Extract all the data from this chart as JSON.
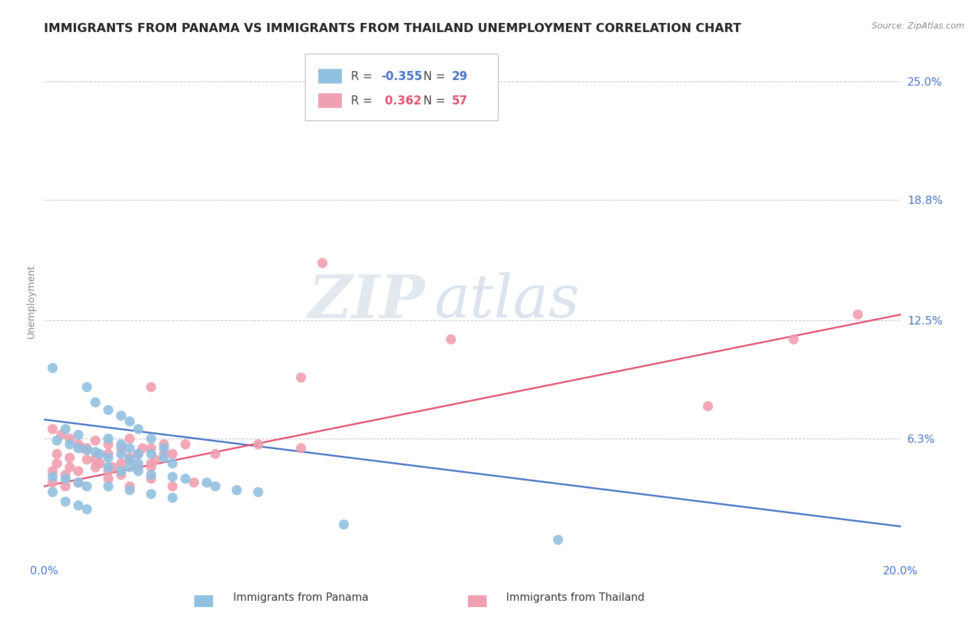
{
  "title": "IMMIGRANTS FROM PANAMA VS IMMIGRANTS FROM THAILAND UNEMPLOYMENT CORRELATION CHART",
  "source": "Source: ZipAtlas.com",
  "ylabel": "Unemployment",
  "xlim": [
    0.0,
    0.2
  ],
  "ylim": [
    0.0,
    0.27
  ],
  "ytick_values": [
    0.063,
    0.125,
    0.188,
    0.25
  ],
  "ytick_labels": [
    "6.3%",
    "12.5%",
    "18.8%",
    "25.0%"
  ],
  "hgrid_values": [
    0.063,
    0.125,
    0.188,
    0.25
  ],
  "watermark_zip": "ZIP",
  "watermark_atlas": "atlas",
  "panama_color": "#92c0e0",
  "thailand_color": "#f0a0b0",
  "panama_line_color": "#4472c4",
  "thailand_line_color": "#e05070",
  "panama_scatter": [
    [
      0.002,
      0.1
    ],
    [
      0.01,
      0.09
    ],
    [
      0.012,
      0.082
    ],
    [
      0.015,
      0.078
    ],
    [
      0.018,
      0.075
    ],
    [
      0.02,
      0.072
    ],
    [
      0.022,
      0.068
    ],
    [
      0.005,
      0.068
    ],
    [
      0.008,
      0.065
    ],
    [
      0.015,
      0.063
    ],
    [
      0.018,
      0.06
    ],
    [
      0.02,
      0.058
    ],
    [
      0.022,
      0.055
    ],
    [
      0.025,
      0.063
    ],
    [
      0.028,
      0.058
    ],
    [
      0.01,
      0.057
    ],
    [
      0.013,
      0.055
    ],
    [
      0.015,
      0.053
    ],
    [
      0.018,
      0.055
    ],
    [
      0.02,
      0.052
    ],
    [
      0.022,
      0.05
    ],
    [
      0.025,
      0.055
    ],
    [
      0.028,
      0.053
    ],
    [
      0.03,
      0.05
    ],
    [
      0.003,
      0.062
    ],
    [
      0.006,
      0.06
    ],
    [
      0.008,
      0.058
    ],
    [
      0.012,
      0.056
    ],
    [
      0.015,
      0.048
    ],
    [
      0.018,
      0.046
    ],
    [
      0.02,
      0.048
    ],
    [
      0.022,
      0.046
    ],
    [
      0.025,
      0.044
    ],
    [
      0.03,
      0.043
    ],
    [
      0.033,
      0.042
    ],
    [
      0.038,
      0.04
    ],
    [
      0.04,
      0.038
    ],
    [
      0.045,
      0.036
    ],
    [
      0.05,
      0.035
    ],
    [
      0.002,
      0.043
    ],
    [
      0.005,
      0.042
    ],
    [
      0.008,
      0.04
    ],
    [
      0.01,
      0.038
    ],
    [
      0.015,
      0.038
    ],
    [
      0.02,
      0.036
    ],
    [
      0.025,
      0.034
    ],
    [
      0.03,
      0.032
    ],
    [
      0.002,
      0.035
    ],
    [
      0.005,
      0.03
    ],
    [
      0.008,
      0.028
    ],
    [
      0.01,
      0.026
    ],
    [
      0.07,
      0.018
    ],
    [
      0.12,
      0.01
    ]
  ],
  "thailand_scatter": [
    [
      0.002,
      0.068
    ],
    [
      0.004,
      0.065
    ],
    [
      0.006,
      0.063
    ],
    [
      0.008,
      0.06
    ],
    [
      0.01,
      0.058
    ],
    [
      0.012,
      0.062
    ],
    [
      0.015,
      0.06
    ],
    [
      0.018,
      0.058
    ],
    [
      0.02,
      0.063
    ],
    [
      0.022,
      0.055
    ],
    [
      0.025,
      0.058
    ],
    [
      0.028,
      0.06
    ],
    [
      0.003,
      0.055
    ],
    [
      0.006,
      0.053
    ],
    [
      0.009,
      0.058
    ],
    [
      0.012,
      0.052
    ],
    [
      0.015,
      0.055
    ],
    [
      0.018,
      0.05
    ],
    [
      0.02,
      0.053
    ],
    [
      0.023,
      0.058
    ],
    [
      0.026,
      0.052
    ],
    [
      0.003,
      0.05
    ],
    [
      0.006,
      0.048
    ],
    [
      0.01,
      0.052
    ],
    [
      0.013,
      0.05
    ],
    [
      0.016,
      0.048
    ],
    [
      0.02,
      0.052
    ],
    [
      0.025,
      0.048
    ],
    [
      0.028,
      0.055
    ],
    [
      0.033,
      0.06
    ],
    [
      0.002,
      0.046
    ],
    [
      0.005,
      0.044
    ],
    [
      0.008,
      0.046
    ],
    [
      0.012,
      0.048
    ],
    [
      0.015,
      0.046
    ],
    [
      0.018,
      0.044
    ],
    [
      0.022,
      0.048
    ],
    [
      0.025,
      0.05
    ],
    [
      0.03,
      0.055
    ],
    [
      0.002,
      0.04
    ],
    [
      0.005,
      0.038
    ],
    [
      0.008,
      0.04
    ],
    [
      0.015,
      0.042
    ],
    [
      0.02,
      0.038
    ],
    [
      0.025,
      0.042
    ],
    [
      0.03,
      0.038
    ],
    [
      0.035,
      0.04
    ],
    [
      0.04,
      0.055
    ],
    [
      0.05,
      0.06
    ],
    [
      0.06,
      0.058
    ],
    [
      0.025,
      0.09
    ],
    [
      0.06,
      0.095
    ],
    [
      0.065,
      0.155
    ],
    [
      0.095,
      0.115
    ],
    [
      0.155,
      0.08
    ],
    [
      0.175,
      0.115
    ],
    [
      0.19,
      0.128
    ]
  ],
  "panama_line": {
    "x0": 0.0,
    "y0": 0.073,
    "x1": 0.2,
    "y1": 0.017
  },
  "thailand_line": {
    "x0": 0.0,
    "y0": 0.038,
    "x1": 0.2,
    "y1": 0.128
  },
  "background_color": "#ffffff",
  "title_color": "#222222",
  "axis_label_color": "#4472c4",
  "grid_color": "#c8c8d0",
  "title_fontsize": 12.5,
  "ylabel_fontsize": 10,
  "tick_fontsize": 11.5
}
